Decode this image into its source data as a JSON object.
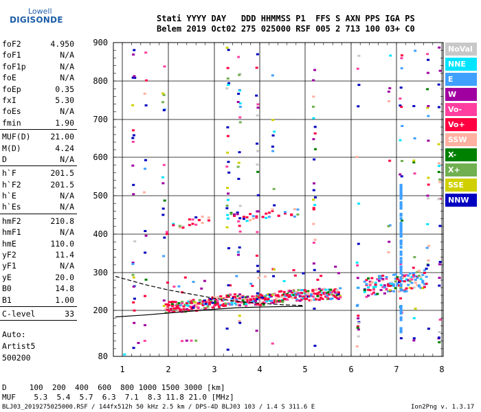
{
  "logo": {
    "top": "Lowell",
    "main": "DIGISONDE"
  },
  "header": {
    "line1": "Stati YYYY DAY   DDD HHMMSS P1  FFS S AXN PPS IGA PS",
    "line2": "Belem 2019 Oct02 275 025000 RSF 005 2 713 100 03+ C0"
  },
  "params": [
    {
      "k": "foF2",
      "v": "4.950"
    },
    {
      "k": "foF1",
      "v": "N/A"
    },
    {
      "k": "foF1p",
      "v": "N/A"
    },
    {
      "k": "foE",
      "v": "N/A"
    },
    {
      "k": "foEp",
      "v": "0.35"
    },
    {
      "k": "fxI",
      "v": "5.30"
    },
    {
      "k": "foEs",
      "v": "N/A"
    },
    {
      "k": "fmin",
      "v": "1.90"
    },
    {
      "k": "MUF(D)",
      "v": "21.00"
    },
    {
      "k": "M(D)",
      "v": "4.24"
    },
    {
      "k": "D",
      "v": "N/A"
    },
    {
      "k": "h`F",
      "v": "201.5"
    },
    {
      "k": "h`F2",
      "v": "201.5"
    },
    {
      "k": "h`E",
      "v": "N/A"
    },
    {
      "k": "h`Es",
      "v": "N/A"
    },
    {
      "k": "hmF2",
      "v": "210.8"
    },
    {
      "k": "hmF1",
      "v": "N/A"
    },
    {
      "k": "hmE",
      "v": "110.0"
    },
    {
      "k": "yF2",
      "v": "11.4"
    },
    {
      "k": "yF1",
      "v": "N/A"
    },
    {
      "k": "yE",
      "v": "20.0"
    },
    {
      "k": "B0",
      "v": "14.8"
    },
    {
      "k": "B1",
      "v": "1.00"
    },
    {
      "k": "C-level",
      "v": "33"
    }
  ],
  "auto": {
    "line1": "Auto:",
    "line2": "Artist5",
    "line3": "500200"
  },
  "table": {
    "line1": "D     100  200  400  600  800 1000 1500 3000 [km]",
    "line2": "MUF    5.3  5.4  5.7  6.3  7.1  8.3 11.8 21.0 [MHz]"
  },
  "footer": {
    "left": "BLJ03_2019275025000.RSF / 144fx512h 50 kHz 2.5 km / DPS-4D BLJ03 103 / 1.4 S 311.6 E",
    "right": "Ion2Png v. 1.3.17"
  },
  "legend": [
    {
      "label": "NoVal",
      "color": "#c8c8c8"
    },
    {
      "label": "NNE",
      "color": "#00e5ff"
    },
    {
      "label": "E",
      "color": "#3fa0ff"
    },
    {
      "label": "W",
      "color": "#a000a0"
    },
    {
      "label": "Vo-",
      "color": "#ff3fa0"
    },
    {
      "label": "Vo+",
      "color": "#ff0040"
    },
    {
      "label": "SSW",
      "color": "#ffb0a0"
    },
    {
      "label": "X-",
      "color": "#008000"
    },
    {
      "label": "X+",
      "color": "#70b050"
    },
    {
      "label": "SSE",
      "color": "#d0d000"
    },
    {
      "label": "NNW",
      "color": "#0000c0"
    }
  ],
  "chart_data": {
    "type": "scatter",
    "xlabel": "",
    "ylabel": "",
    "xticks": [
      "1",
      "2",
      "3",
      "4",
      "5",
      "6",
      "7",
      "8"
    ],
    "yticks": [
      "80",
      "200",
      "300",
      "400",
      "500",
      "600",
      "700",
      "800",
      "900"
    ],
    "xlim": [
      0.85,
      8.0
    ],
    "ylim_note": "virtual height km, non-linear scale",
    "grid": true,
    "legend_position": "right",
    "trace_main": [
      {
        "f": 1.95,
        "h": 206
      },
      {
        "f": 2.2,
        "h": 207
      },
      {
        "f": 2.6,
        "h": 210
      },
      {
        "f": 3.0,
        "h": 218
      },
      {
        "f": 3.4,
        "h": 226
      },
      {
        "f": 3.8,
        "h": 222
      },
      {
        "f": 4.2,
        "h": 228
      },
      {
        "f": 4.6,
        "h": 235
      },
      {
        "f": 5.0,
        "h": 238
      },
      {
        "f": 5.4,
        "h": 240
      },
      {
        "f": 5.8,
        "h": 242
      }
    ],
    "trace_upper": [
      {
        "f": 6.3,
        "h": 260
      },
      {
        "f": 6.7,
        "h": 268
      },
      {
        "f": 7.1,
        "h": 272
      },
      {
        "f": 7.4,
        "h": 280
      },
      {
        "f": 7.7,
        "h": 286
      }
    ],
    "trace_second_hop": [
      {
        "f": 1.9,
        "h": 410
      },
      {
        "f": 2.5,
        "h": 430
      },
      {
        "f": 3.0,
        "h": 440
      },
      {
        "f": 3.6,
        "h": 445
      },
      {
        "f": 4.4,
        "h": 455
      },
      {
        "f": 5.2,
        "h": 460
      }
    ],
    "profile_solid": [
      {
        "f": 0.85,
        "h": 183
      },
      {
        "f": 1.5,
        "h": 188
      },
      {
        "f": 2.0,
        "h": 193
      },
      {
        "f": 2.5,
        "h": 198
      },
      {
        "f": 3.0,
        "h": 203
      },
      {
        "f": 3.5,
        "h": 207
      },
      {
        "f": 4.0,
        "h": 209
      },
      {
        "f": 4.5,
        "h": 210
      },
      {
        "f": 4.95,
        "h": 210.8
      }
    ],
    "profile_dashed": [
      {
        "f": 0.85,
        "h": 290
      },
      {
        "f": 1.5,
        "h": 268
      },
      {
        "f": 2.0,
        "h": 254
      },
      {
        "f": 2.5,
        "h": 243
      },
      {
        "f": 3.0,
        "h": 232
      },
      {
        "f": 3.5,
        "h": 224
      },
      {
        "f": 4.0,
        "h": 219
      },
      {
        "f": 4.5,
        "h": 215
      },
      {
        "f": 4.95,
        "h": 213
      }
    ]
  }
}
